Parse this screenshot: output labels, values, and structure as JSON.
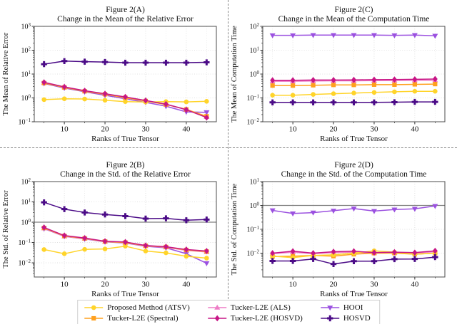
{
  "page": {
    "background": "#ffffff"
  },
  "style": {
    "major_grid_color": "#d9d9d9",
    "minor_grid_color": "#e6e6e6",
    "spine_color": "#4d4d4d",
    "tick_color": "#333333",
    "text_color": "#111111",
    "hline_color": "#808080",
    "divider_color": "#8a8a8a",
    "legend_border_color": "#cfcfcf"
  },
  "series_defs": [
    {
      "key": "atsv",
      "label": "Proposed Method (ATSV)",
      "color": "#FFD42A",
      "marker": "circle"
    },
    {
      "key": "spectral",
      "label": "Tucker-L2E (Spectral)",
      "color": "#FFA01E",
      "marker": "square"
    },
    {
      "key": "als",
      "label": "Tucker-L2E (ALS)",
      "color": "#EE7DC6",
      "marker": "triangle-up"
    },
    {
      "key": "l2e_hosvd",
      "label": "Tucker-L2E (HOSVD)",
      "color": "#C71585",
      "marker": "diamond"
    },
    {
      "key": "hooi",
      "label": "HOOI",
      "color": "#9B51E0",
      "marker": "triangle-down"
    },
    {
      "key": "hosvd",
      "label": "HOSVD",
      "color": "#4B0B87",
      "marker": "plus"
    }
  ],
  "legend_display_order": [
    "atsv",
    "spectral",
    "als",
    "l2e_hosvd",
    "hooi",
    "hosvd"
  ],
  "chart_data": [
    {
      "id": "A",
      "type": "line",
      "title": "Figure 2(A)",
      "subtitle": "Change in the Mean of the Relative Error",
      "ylabel": "The Mean of Relative Error",
      "xlabel": "Ranks of True Tensor",
      "x": [
        5,
        10,
        15,
        20,
        25,
        30,
        35,
        40,
        45
      ],
      "xticks": [
        10,
        20,
        30,
        40
      ],
      "ylog": true,
      "ylim": [
        0.1,
        1000
      ],
      "ytick_exponents": [
        3,
        2,
        1,
        0,
        -1
      ],
      "hline": null,
      "series": [
        {
          "key": "hooi",
          "values": [
            4.0,
            2.6,
            1.8,
            1.3,
            0.92,
            0.65,
            0.45,
            0.26,
            0.25
          ]
        },
        {
          "key": "als",
          "values": [
            4.3,
            2.8,
            1.95,
            1.45,
            1.05,
            0.75,
            0.54,
            0.33,
            0.16
          ]
        },
        {
          "key": "spectral",
          "values": [
            4.2,
            2.75,
            1.9,
            1.42,
            1.02,
            0.74,
            0.53,
            0.33,
            0.17
          ]
        },
        {
          "key": "atsv",
          "values": [
            0.85,
            0.92,
            0.9,
            0.8,
            0.7,
            0.67,
            0.7,
            0.68,
            0.72
          ]
        },
        {
          "key": "l2e_hosvd",
          "values": [
            4.5,
            2.9,
            2.0,
            1.5,
            1.1,
            0.78,
            0.55,
            0.32,
            0.15
          ]
        },
        {
          "key": "hosvd",
          "values": [
            26,
            35,
            33,
            32,
            30,
            30,
            30,
            30,
            31
          ]
        }
      ]
    },
    {
      "id": "C",
      "type": "line",
      "title": "Figure 2(C)",
      "subtitle": "Change in the Mean of the Computation Time",
      "ylabel": "The Mean of Computation Time",
      "xlabel": "Ranks of True Tensor",
      "x": [
        5,
        10,
        15,
        20,
        25,
        30,
        35,
        40,
        45
      ],
      "xticks": [
        10,
        20,
        30,
        40
      ],
      "ylog": true,
      "ylim": [
        0.01,
        100
      ],
      "ytick_exponents": [
        2,
        1,
        0,
        -1,
        -2
      ],
      "hline": null,
      "series": [
        {
          "key": "hooi",
          "values": [
            42,
            42,
            43,
            43,
            43,
            43,
            42,
            43,
            40
          ]
        },
        {
          "key": "als",
          "values": [
            0.5,
            0.5,
            0.51,
            0.52,
            0.52,
            0.53,
            0.54,
            0.55,
            0.55
          ]
        },
        {
          "key": "spectral",
          "values": [
            0.33,
            0.33,
            0.34,
            0.35,
            0.35,
            0.36,
            0.36,
            0.37,
            0.38
          ]
        },
        {
          "key": "atsv",
          "values": [
            0.13,
            0.13,
            0.14,
            0.15,
            0.16,
            0.17,
            0.18,
            0.19,
            0.19
          ]
        },
        {
          "key": "l2e_hosvd",
          "values": [
            0.55,
            0.55,
            0.56,
            0.56,
            0.57,
            0.58,
            0.59,
            0.6,
            0.62
          ]
        },
        {
          "key": "hosvd",
          "values": [
            0.065,
            0.065,
            0.065,
            0.065,
            0.065,
            0.065,
            0.066,
            0.068,
            0.068
          ]
        }
      ]
    },
    {
      "id": "B",
      "type": "line",
      "title": "Figure 2(B)",
      "subtitle": "Change in the Std. of the Relative Error",
      "ylabel": "The Std. of Relative Error",
      "xlabel": "Ranks of True Tensor",
      "x": [
        5,
        10,
        15,
        20,
        25,
        30,
        35,
        40,
        45
      ],
      "xticks": [
        10,
        20,
        30,
        40
      ],
      "ylog": true,
      "ylim": [
        0.002,
        100
      ],
      "ytick_exponents": [
        2,
        1,
        0,
        -1,
        -2
      ],
      "hline": 1,
      "series": [
        {
          "key": "hooi",
          "values": [
            0.48,
            0.2,
            0.15,
            0.108,
            0.095,
            0.065,
            0.055,
            0.028,
            0.0095
          ]
        },
        {
          "key": "als",
          "values": [
            0.5,
            0.2,
            0.155,
            0.11,
            0.098,
            0.067,
            0.058,
            0.041,
            0.034
          ]
        },
        {
          "key": "spectral",
          "values": [
            0.52,
            0.21,
            0.16,
            0.112,
            0.1,
            0.069,
            0.06,
            0.043,
            0.036
          ]
        },
        {
          "key": "atsv",
          "values": [
            0.045,
            0.028,
            0.046,
            0.048,
            0.066,
            0.038,
            0.031,
            0.021,
            0.017
          ]
        },
        {
          "key": "l2e_hosvd",
          "values": [
            0.55,
            0.22,
            0.165,
            0.115,
            0.105,
            0.071,
            0.062,
            0.045,
            0.038
          ]
        },
        {
          "key": "hosvd",
          "values": [
            9.5,
            4.4,
            3.0,
            2.4,
            2.0,
            1.5,
            1.55,
            1.25,
            1.35
          ]
        }
      ]
    },
    {
      "id": "D",
      "type": "line",
      "title": "Figure 2(D)",
      "subtitle": "Change in the Std. of the Computation Time",
      "ylabel": "The Std. of Computation Time",
      "xlabel": "Ranks of True Tensor",
      "x": [
        5,
        10,
        15,
        20,
        25,
        30,
        35,
        40,
        45
      ],
      "xticks": [
        10,
        20,
        30,
        40
      ],
      "ylog": true,
      "ylim": [
        0.001,
        10
      ],
      "ytick_exponents": [
        1,
        0,
        -1,
        -2
      ],
      "hline": 1,
      "series": [
        {
          "key": "hooi",
          "values": [
            0.62,
            0.46,
            0.5,
            0.6,
            0.74,
            0.58,
            0.67,
            0.72,
            0.95
          ]
        },
        {
          "key": "als",
          "values": [
            0.0095,
            0.011,
            0.0095,
            0.0105,
            0.011,
            0.01,
            0.0105,
            0.01,
            0.0115
          ]
        },
        {
          "key": "spectral",
          "values": [
            0.0072,
            0.0075,
            0.008,
            0.0075,
            0.009,
            0.01,
            0.01,
            0.009,
            0.01
          ]
        },
        {
          "key": "atsv",
          "values": [
            0.0075,
            0.0065,
            0.008,
            0.0085,
            0.01,
            0.0125,
            0.011,
            0.009,
            0.01
          ]
        },
        {
          "key": "l2e_hosvd",
          "values": [
            0.01,
            0.012,
            0.01,
            0.0115,
            0.012,
            0.0105,
            0.011,
            0.0105,
            0.0125
          ]
        },
        {
          "key": "hosvd",
          "values": [
            0.0047,
            0.0047,
            0.0057,
            0.0035,
            0.0046,
            0.0046,
            0.0056,
            0.0057,
            0.0068
          ]
        }
      ]
    }
  ]
}
